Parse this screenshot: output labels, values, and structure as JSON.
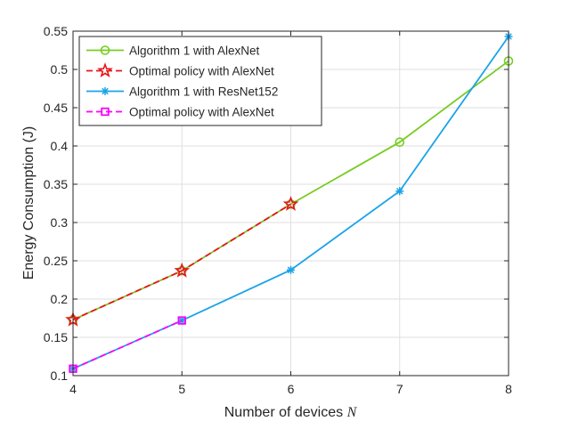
{
  "chart_data": {
    "type": "line",
    "title": "",
    "xlabel": "Number of devices",
    "xlabel_var": "N",
    "ylabel": "Energy Consumption (J)",
    "xlim": [
      4,
      8
    ],
    "ylim": [
      0.1,
      0.55
    ],
    "x_ticks": [
      4,
      5,
      6,
      7,
      8
    ],
    "y_ticks": [
      0.1,
      0.15,
      0.2,
      0.25,
      0.3,
      0.35,
      0.4,
      0.45,
      0.5,
      0.55
    ],
    "x_tick_labels": [
      "4",
      "5",
      "6",
      "7",
      "8"
    ],
    "y_tick_labels": [
      "0.1",
      "0.15",
      "0.2",
      "0.25",
      "0.3",
      "0.35",
      "0.4",
      "0.45",
      "0.5",
      "0.55"
    ],
    "grid": true,
    "legend_position": "top-left",
    "series": [
      {
        "name": "Algorithm 1 with AlexNet",
        "color": "#77cc22",
        "line_style": "solid",
        "marker": "circle",
        "x": [
          4,
          5,
          6,
          7,
          8
        ],
        "y": [
          0.173,
          0.237,
          0.324,
          0.405,
          0.511
        ]
      },
      {
        "name": "Optimal policy with AlexNet",
        "color": "#e8141a",
        "line_style": "dashed",
        "marker": "star",
        "x": [
          4,
          5,
          6
        ],
        "y": [
          0.173,
          0.237,
          0.324
        ]
      },
      {
        "name": "Algorithm 1 with ResNet152",
        "color": "#1aa3e8",
        "line_style": "solid",
        "marker": "asterisk",
        "x": [
          4,
          5,
          6,
          7,
          8
        ],
        "y": [
          0.109,
          0.172,
          0.238,
          0.341,
          0.543
        ]
      },
      {
        "name": "Optimal policy with AlexNet",
        "color": "#ff00ff",
        "line_style": "dashed",
        "marker": "square",
        "x": [
          4,
          5
        ],
        "y": [
          0.109,
          0.172
        ]
      }
    ]
  }
}
